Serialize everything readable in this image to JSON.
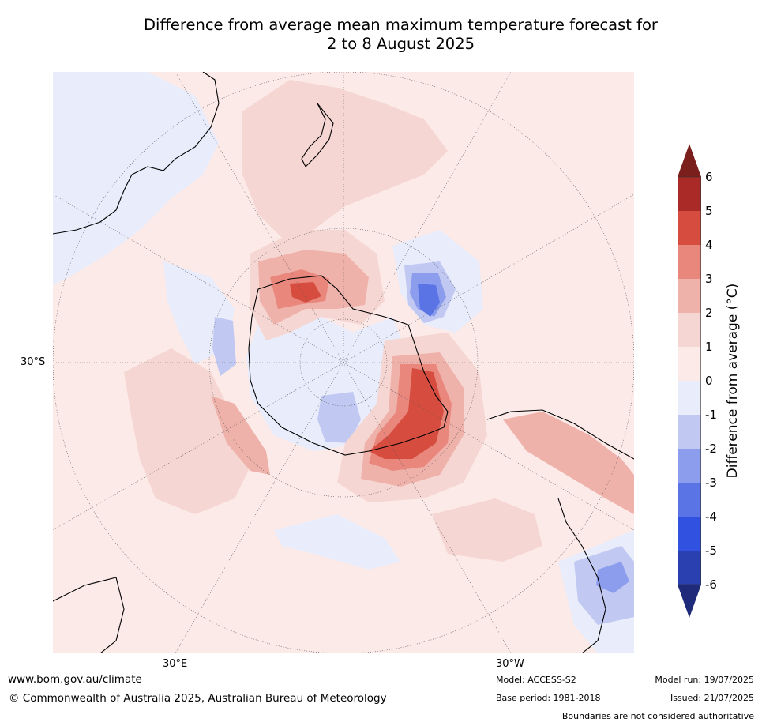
{
  "title_line1": "Difference from average mean maximum temperature forecast for",
  "title_line2": "2 to 8 August 2025",
  "map": {
    "projection": "south-polar-stereographic",
    "ocean_color": "#fbeae8",
    "lat_label": "30°S",
    "lon_labels": [
      "30°E",
      "30°W"
    ]
  },
  "colorbar": {
    "label": "Difference from average (°C)",
    "ticks": [
      "6",
      "5",
      "4",
      "3",
      "2",
      "1",
      "0",
      "-1",
      "-2",
      "-3",
      "-4",
      "-5",
      "-6"
    ],
    "levels": [
      {
        "range": [
          5,
          6
        ],
        "color": "#a92a26"
      },
      {
        "range": [
          4,
          5
        ],
        "color": "#d64d3f"
      },
      {
        "range": [
          3,
          4
        ],
        "color": "#e9877d"
      },
      {
        "range": [
          2,
          3
        ],
        "color": "#efb2aa"
      },
      {
        "range": [
          1,
          2
        ],
        "color": "#f6d6d2"
      },
      {
        "range": [
          0,
          1
        ],
        "color": "#fbeae8"
      },
      {
        "range": [
          -1,
          0
        ],
        "color": "#e8ecfb"
      },
      {
        "range": [
          -2,
          -1
        ],
        "color": "#c1c9f2"
      },
      {
        "range": [
          -3,
          -2
        ],
        "color": "#8d9ded"
      },
      {
        "range": [
          -4,
          -3
        ],
        "color": "#5a74e5"
      },
      {
        "range": [
          -5,
          -4
        ],
        "color": "#3152e0"
      },
      {
        "range": [
          -6,
          -5
        ],
        "color": "#2a3fb0"
      }
    ],
    "over_color": "#7a1f1c",
    "under_color": "#1f2b7a"
  },
  "footer": {
    "url": "www.bom.gov.au/climate",
    "copyright": "© Commonwealth of Australia 2025, Australian Bureau of Meteorology",
    "model": "Model: ACCESS-S2",
    "base_period": "Base period: 1981-2018",
    "model_run": "Model run: 19/07/2025",
    "issued": "Issued: 21/07/2025",
    "disclaimer": "Boundaries are not considered authoritative"
  }
}
